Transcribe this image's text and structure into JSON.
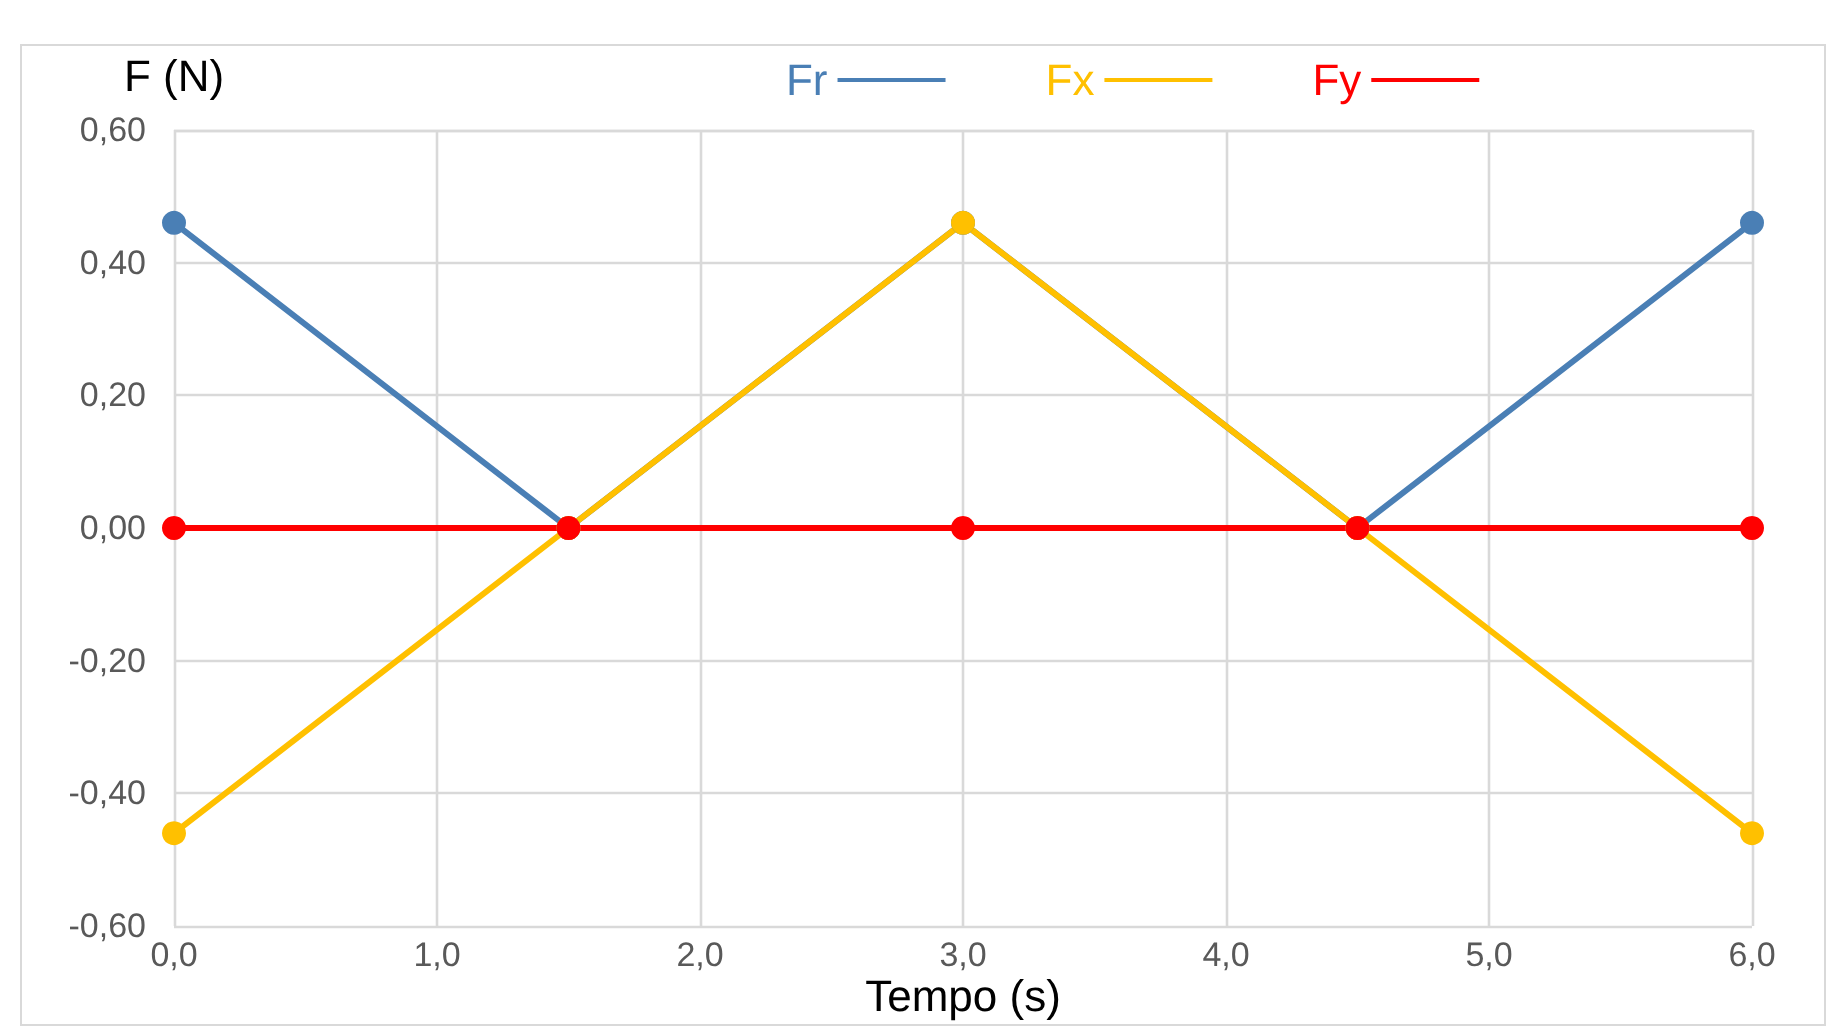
{
  "chart_data": {
    "type": "line",
    "xlabel": "Tempo (s)",
    "ylabel": "F (N)",
    "x": [
      0,
      1.5,
      3,
      4.5,
      6
    ],
    "series": [
      {
        "name": "Fr",
        "color": "#4a7fb5",
        "values": [
          0.46,
          0,
          0.46,
          0,
          0.46
        ]
      },
      {
        "name": "Fx",
        "color": "#ffc000",
        "values": [
          -0.46,
          0,
          0.46,
          0,
          -0.46
        ]
      },
      {
        "name": "Fy",
        "color": "#ff0000",
        "values": [
          0,
          0,
          0,
          0,
          0
        ]
      }
    ],
    "xlim": [
      0,
      6
    ],
    "xticks": [
      {
        "value": 0,
        "label": "0,0"
      },
      {
        "value": 1,
        "label": "1,0"
      },
      {
        "value": 2,
        "label": "2,0"
      },
      {
        "value": 3,
        "label": "3,0"
      },
      {
        "value": 4,
        "label": "4,0"
      },
      {
        "value": 5,
        "label": "5,0"
      },
      {
        "value": 6,
        "label": "6,0"
      }
    ],
    "ylim": [
      -0.6,
      0.6
    ],
    "yticks": [
      {
        "value": -0.6,
        "label": "-0,60"
      },
      {
        "value": -0.4,
        "label": "-0,40"
      },
      {
        "value": -0.2,
        "label": "-0,20"
      },
      {
        "value": 0,
        "label": "0,00"
      },
      {
        "value": 0.2,
        "label": "0,20"
      },
      {
        "value": 0.4,
        "label": "0,40"
      },
      {
        "value": 0.6,
        "label": "0,60"
      }
    ],
    "grid": true,
    "legend": "top",
    "marker": "circle"
  }
}
